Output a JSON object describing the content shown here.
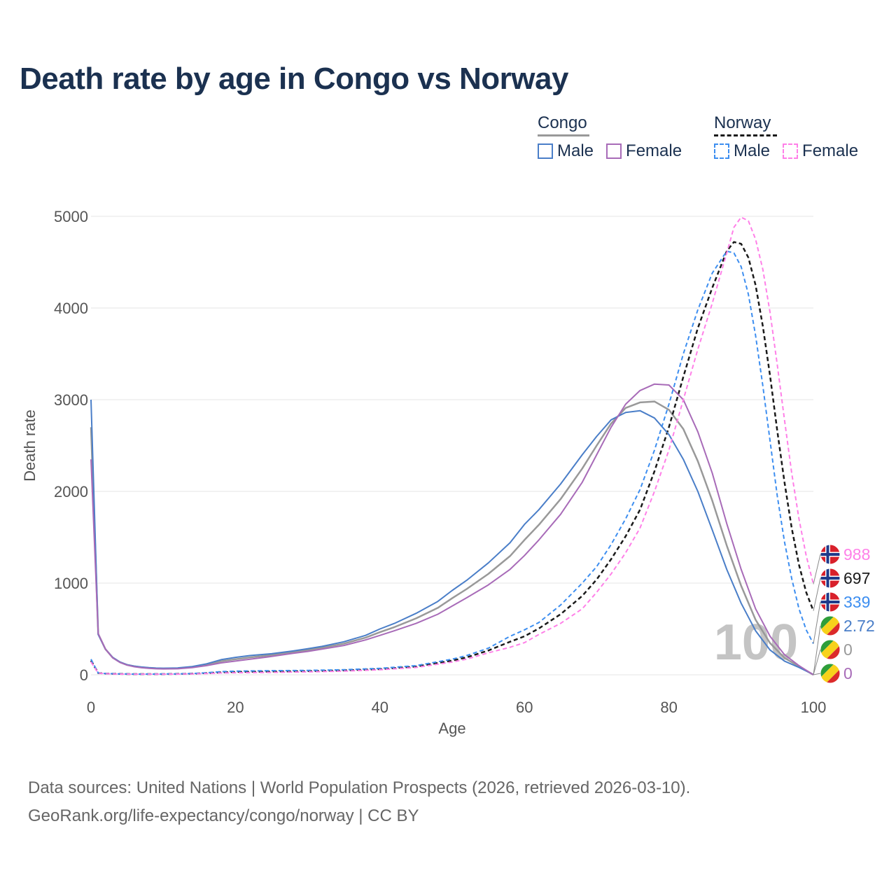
{
  "title": "Death rate by age in Congo vs Norway",
  "legend": {
    "congo": {
      "label": "Congo",
      "male": "Male",
      "female": "Female"
    },
    "norway": {
      "label": "Norway",
      "male": "Male",
      "female": "Female"
    }
  },
  "colors": {
    "congo_male": "#4a7ec8",
    "congo_female": "#a86bb8",
    "congo_total": "#999999",
    "norway_male": "#3d8ef0",
    "norway_female": "#ff80e8",
    "norway_total": "#1a1a1a",
    "title": "#1b3150"
  },
  "chart_data": {
    "type": "line",
    "title": "Death rate by age in Congo vs Norway",
    "xlabel": "Age",
    "ylabel": "Death rate",
    "xlim": [
      0,
      100
    ],
    "ylim": [
      0,
      5000
    ],
    "x_ticks": [
      "0",
      "20",
      "40",
      "60",
      "80",
      "100"
    ],
    "y_ticks": [
      "0",
      "1000",
      "2000",
      "3000",
      "4000",
      "5000"
    ],
    "watermark": "100",
    "series": [
      {
        "key": "congo_male",
        "name": "Congo Male",
        "dash": "solid",
        "points": [
          [
            0,
            3000
          ],
          [
            1,
            440
          ],
          [
            2,
            280
          ],
          [
            3,
            190
          ],
          [
            4,
            140
          ],
          [
            5,
            110
          ],
          [
            6,
            95
          ],
          [
            7,
            85
          ],
          [
            8,
            78
          ],
          [
            9,
            73
          ],
          [
            10,
            72
          ],
          [
            12,
            75
          ],
          [
            14,
            90
          ],
          [
            16,
            120
          ],
          [
            18,
            165
          ],
          [
            20,
            190
          ],
          [
            22,
            210
          ],
          [
            25,
            230
          ],
          [
            28,
            260
          ],
          [
            30,
            285
          ],
          [
            32,
            310
          ],
          [
            35,
            360
          ],
          [
            38,
            430
          ],
          [
            40,
            500
          ],
          [
            42,
            560
          ],
          [
            45,
            670
          ],
          [
            48,
            800
          ],
          [
            50,
            920
          ],
          [
            52,
            1030
          ],
          [
            55,
            1220
          ],
          [
            58,
            1440
          ],
          [
            60,
            1640
          ],
          [
            62,
            1800
          ],
          [
            65,
            2080
          ],
          [
            68,
            2400
          ],
          [
            70,
            2600
          ],
          [
            72,
            2780
          ],
          [
            74,
            2860
          ],
          [
            76,
            2880
          ],
          [
            78,
            2800
          ],
          [
            80,
            2620
          ],
          [
            82,
            2350
          ],
          [
            84,
            2000
          ],
          [
            86,
            1580
          ],
          [
            88,
            1150
          ],
          [
            90,
            780
          ],
          [
            92,
            480
          ],
          [
            94,
            270
          ],
          [
            96,
            150
          ],
          [
            98,
            80
          ],
          [
            100,
            2.72
          ]
        ],
        "end_value": "2.72"
      },
      {
        "key": "congo_female",
        "name": "Congo Female",
        "dash": "solid",
        "points": [
          [
            0,
            2350
          ],
          [
            1,
            450
          ],
          [
            2,
            280
          ],
          [
            3,
            185
          ],
          [
            4,
            135
          ],
          [
            5,
            105
          ],
          [
            6,
            88
          ],
          [
            7,
            77
          ],
          [
            8,
            70
          ],
          [
            9,
            66
          ],
          [
            10,
            64
          ],
          [
            12,
            66
          ],
          [
            14,
            78
          ],
          [
            16,
            100
          ],
          [
            18,
            130
          ],
          [
            20,
            150
          ],
          [
            22,
            170
          ],
          [
            25,
            200
          ],
          [
            28,
            235
          ],
          [
            30,
            255
          ],
          [
            32,
            280
          ],
          [
            35,
            320
          ],
          [
            38,
            380
          ],
          [
            40,
            430
          ],
          [
            42,
            480
          ],
          [
            45,
            560
          ],
          [
            48,
            660
          ],
          [
            50,
            750
          ],
          [
            52,
            840
          ],
          [
            55,
            980
          ],
          [
            58,
            1150
          ],
          [
            60,
            1300
          ],
          [
            62,
            1470
          ],
          [
            65,
            1750
          ],
          [
            68,
            2100
          ],
          [
            70,
            2400
          ],
          [
            72,
            2700
          ],
          [
            74,
            2950
          ],
          [
            76,
            3100
          ],
          [
            78,
            3170
          ],
          [
            80,
            3160
          ],
          [
            82,
            3000
          ],
          [
            84,
            2650
          ],
          [
            86,
            2200
          ],
          [
            88,
            1650
          ],
          [
            90,
            1150
          ],
          [
            92,
            720
          ],
          [
            94,
            420
          ],
          [
            96,
            220
          ],
          [
            98,
            100
          ],
          [
            100,
            0
          ]
        ],
        "end_value": "0"
      },
      {
        "key": "congo_total",
        "name": "Congo",
        "dash": "solid",
        "points": [
          [
            0,
            2700
          ],
          [
            1,
            445
          ],
          [
            2,
            280
          ],
          [
            3,
            188
          ],
          [
            4,
            138
          ],
          [
            5,
            108
          ],
          [
            6,
            92
          ],
          [
            7,
            81
          ],
          [
            8,
            74
          ],
          [
            9,
            70
          ],
          [
            10,
            68
          ],
          [
            12,
            70
          ],
          [
            14,
            84
          ],
          [
            16,
            110
          ],
          [
            18,
            148
          ],
          [
            20,
            170
          ],
          [
            22,
            190
          ],
          [
            25,
            215
          ],
          [
            28,
            248
          ],
          [
            30,
            270
          ],
          [
            32,
            295
          ],
          [
            35,
            340
          ],
          [
            38,
            405
          ],
          [
            40,
            465
          ],
          [
            42,
            520
          ],
          [
            45,
            615
          ],
          [
            48,
            730
          ],
          [
            50,
            835
          ],
          [
            52,
            935
          ],
          [
            55,
            1100
          ],
          [
            58,
            1295
          ],
          [
            60,
            1470
          ],
          [
            62,
            1635
          ],
          [
            65,
            1915
          ],
          [
            68,
            2250
          ],
          [
            70,
            2500
          ],
          [
            72,
            2740
          ],
          [
            74,
            2910
          ],
          [
            76,
            2970
          ],
          [
            78,
            2980
          ],
          [
            80,
            2890
          ],
          [
            82,
            2680
          ],
          [
            84,
            2330
          ],
          [
            86,
            1900
          ],
          [
            88,
            1410
          ],
          [
            90,
            970
          ],
          [
            92,
            600
          ],
          [
            94,
            345
          ],
          [
            96,
            185
          ],
          [
            98,
            90
          ],
          [
            100,
            0
          ]
        ],
        "end_value": "0"
      },
      {
        "key": "norway_male",
        "name": "Norway Male",
        "dash": "dashed",
        "points": [
          [
            0,
            170
          ],
          [
            1,
            20
          ],
          [
            2,
            14
          ],
          [
            4,
            10
          ],
          [
            6,
            8
          ],
          [
            8,
            8
          ],
          [
            10,
            9
          ],
          [
            12,
            10
          ],
          [
            14,
            14
          ],
          [
            16,
            22
          ],
          [
            18,
            34
          ],
          [
            20,
            40
          ],
          [
            25,
            45
          ],
          [
            30,
            48
          ],
          [
            35,
            55
          ],
          [
            40,
            70
          ],
          [
            45,
            100
          ],
          [
            50,
            170
          ],
          [
            52,
            210
          ],
          [
            55,
            290
          ],
          [
            58,
            420
          ],
          [
            60,
            490
          ],
          [
            62,
            570
          ],
          [
            65,
            760
          ],
          [
            68,
            1000
          ],
          [
            70,
            1180
          ],
          [
            72,
            1420
          ],
          [
            74,
            1700
          ],
          [
            76,
            2020
          ],
          [
            78,
            2450
          ],
          [
            80,
            2950
          ],
          [
            82,
            3500
          ],
          [
            84,
            3980
          ],
          [
            86,
            4380
          ],
          [
            88,
            4620
          ],
          [
            89,
            4600
          ],
          [
            90,
            4450
          ],
          [
            91,
            4150
          ],
          [
            92,
            3700
          ],
          [
            93,
            3150
          ],
          [
            94,
            2550
          ],
          [
            95,
            1950
          ],
          [
            96,
            1450
          ],
          [
            97,
            1050
          ],
          [
            98,
            720
          ],
          [
            99,
            490
          ],
          [
            100,
            339
          ]
        ],
        "end_value": "339"
      },
      {
        "key": "norway_female",
        "name": "Norway Female",
        "dash": "dashed",
        "points": [
          [
            0,
            140
          ],
          [
            1,
            18
          ],
          [
            2,
            12
          ],
          [
            4,
            8
          ],
          [
            6,
            7
          ],
          [
            8,
            7
          ],
          [
            10,
            7
          ],
          [
            12,
            8
          ],
          [
            14,
            10
          ],
          [
            16,
            14
          ],
          [
            18,
            20
          ],
          [
            20,
            22
          ],
          [
            25,
            26
          ],
          [
            30,
            32
          ],
          [
            35,
            40
          ],
          [
            40,
            55
          ],
          [
            45,
            80
          ],
          [
            50,
            140
          ],
          [
            52,
            170
          ],
          [
            55,
            240
          ],
          [
            58,
            300
          ],
          [
            60,
            350
          ],
          [
            62,
            440
          ],
          [
            65,
            560
          ],
          [
            68,
            720
          ],
          [
            70,
            900
          ],
          [
            72,
            1100
          ],
          [
            74,
            1330
          ],
          [
            76,
            1600
          ],
          [
            78,
            2000
          ],
          [
            80,
            2450
          ],
          [
            82,
            3000
          ],
          [
            84,
            3550
          ],
          [
            86,
            4050
          ],
          [
            88,
            4600
          ],
          [
            89,
            4880
          ],
          [
            90,
            4990
          ],
          [
            91,
            4950
          ],
          [
            92,
            4750
          ],
          [
            93,
            4420
          ],
          [
            94,
            3950
          ],
          [
            95,
            3380
          ],
          [
            96,
            2780
          ],
          [
            97,
            2200
          ],
          [
            98,
            1700
          ],
          [
            99,
            1300
          ],
          [
            100,
            988
          ]
        ],
        "end_value": "988"
      },
      {
        "key": "norway_total",
        "name": "Norway",
        "dash": "dashed",
        "points": [
          [
            0,
            155
          ],
          [
            1,
            19
          ],
          [
            2,
            13
          ],
          [
            4,
            9
          ],
          [
            6,
            8
          ],
          [
            8,
            8
          ],
          [
            10,
            8
          ],
          [
            12,
            9
          ],
          [
            14,
            12
          ],
          [
            16,
            18
          ],
          [
            18,
            27
          ],
          [
            20,
            31
          ],
          [
            25,
            36
          ],
          [
            30,
            40
          ],
          [
            35,
            48
          ],
          [
            40,
            62
          ],
          [
            45,
            90
          ],
          [
            50,
            155
          ],
          [
            52,
            190
          ],
          [
            55,
            265
          ],
          [
            58,
            360
          ],
          [
            60,
            420
          ],
          [
            62,
            505
          ],
          [
            65,
            660
          ],
          [
            68,
            860
          ],
          [
            70,
            1040
          ],
          [
            72,
            1260
          ],
          [
            74,
            1510
          ],
          [
            76,
            1800
          ],
          [
            78,
            2220
          ],
          [
            80,
            2700
          ],
          [
            82,
            3250
          ],
          [
            84,
            3780
          ],
          [
            86,
            4220
          ],
          [
            88,
            4620
          ],
          [
            89,
            4720
          ],
          [
            90,
            4700
          ],
          [
            91,
            4550
          ],
          [
            92,
            4250
          ],
          [
            93,
            3800
          ],
          [
            94,
            3260
          ],
          [
            95,
            2660
          ],
          [
            96,
            2100
          ],
          [
            97,
            1600
          ],
          [
            98,
            1200
          ],
          [
            99,
            900
          ],
          [
            100,
            697
          ]
        ],
        "end_value": "697"
      }
    ],
    "end_labels": [
      {
        "value": "988",
        "key": "norway_female",
        "flag": "norway"
      },
      {
        "value": "697",
        "key": "norway_total",
        "flag": "norway"
      },
      {
        "value": "339",
        "key": "norway_male",
        "flag": "norway"
      },
      {
        "value": "2.72",
        "key": "congo_male",
        "flag": "congo"
      },
      {
        "value": "0",
        "key": "congo_total",
        "flag": "congo"
      },
      {
        "value": "0",
        "key": "congo_female",
        "flag": "congo"
      }
    ]
  },
  "source": {
    "line1": "Data sources: United Nations | World Population Prospects (2026, retrieved 2026-03-10).",
    "line2": "GeoRank.org/life-expectancy/congo/norway | CC BY"
  }
}
